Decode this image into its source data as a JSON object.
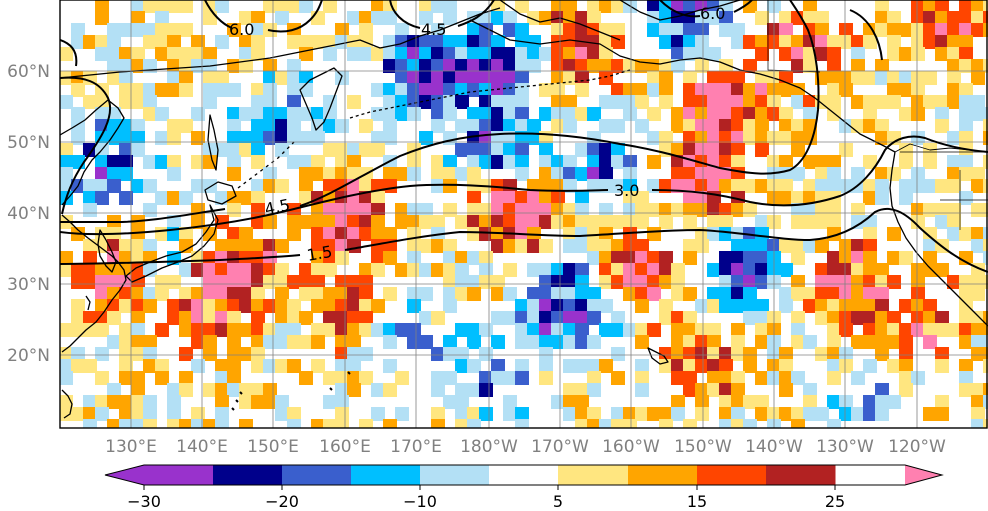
{
  "map": {
    "lat_labels": [
      "60°N",
      "50°N",
      "40°N",
      "30°N",
      "20°N"
    ],
    "lon_labels": [
      "130°E",
      "140°E",
      "150°E",
      "160°E",
      "170°E",
      "180°W",
      "170°W",
      "160°W",
      "150°W",
      "140°W",
      "130°W",
      "120°W"
    ],
    "contour_labels": [
      "6.0",
      "4.5",
      "6.0",
      "4.5",
      "3.0",
      "1.5"
    ],
    "domain": {
      "lon_min": 120,
      "lon_max": 248,
      "lat_min": 10,
      "lat_max": 70
    }
  },
  "colorbar": {
    "tick_labels": [
      "−30",
      "−20",
      "−10",
      "5",
      "15",
      "25"
    ],
    "colors": [
      "#9932cc",
      "#00008b",
      "#3a5fcd",
      "#00bfff",
      "#b3e0f5",
      "#ffffff",
      "#ffe680",
      "#ffa500",
      "#ff4500",
      "#b22222",
      "#ff80b0"
    ],
    "extend": "both"
  },
  "colors": {
    "frame": "#000000",
    "grid": "#808080",
    "tick_text": "#808080"
  }
}
